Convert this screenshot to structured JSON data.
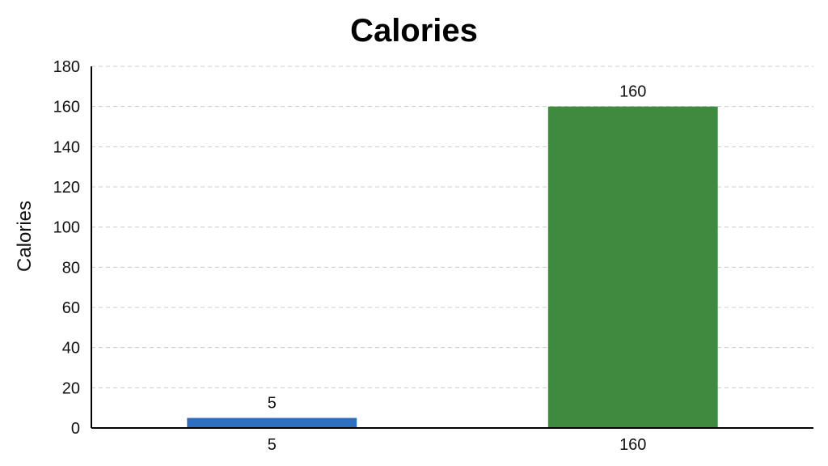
{
  "chart_data": {
    "type": "bar",
    "title": "Calories",
    "xlabel": "",
    "ylabel": "Calories",
    "categories": [
      "5",
      "160"
    ],
    "values": [
      5,
      160
    ],
    "data_labels": [
      "5",
      "160"
    ],
    "bar_colors": [
      "#2f6fc0",
      "#3e8a3e"
    ],
    "ylim": [
      0,
      180
    ],
    "yticks": [
      0,
      20,
      40,
      60,
      80,
      100,
      120,
      140,
      160,
      180
    ],
    "grid": true,
    "grid_style": "dashed",
    "legend": "none"
  }
}
